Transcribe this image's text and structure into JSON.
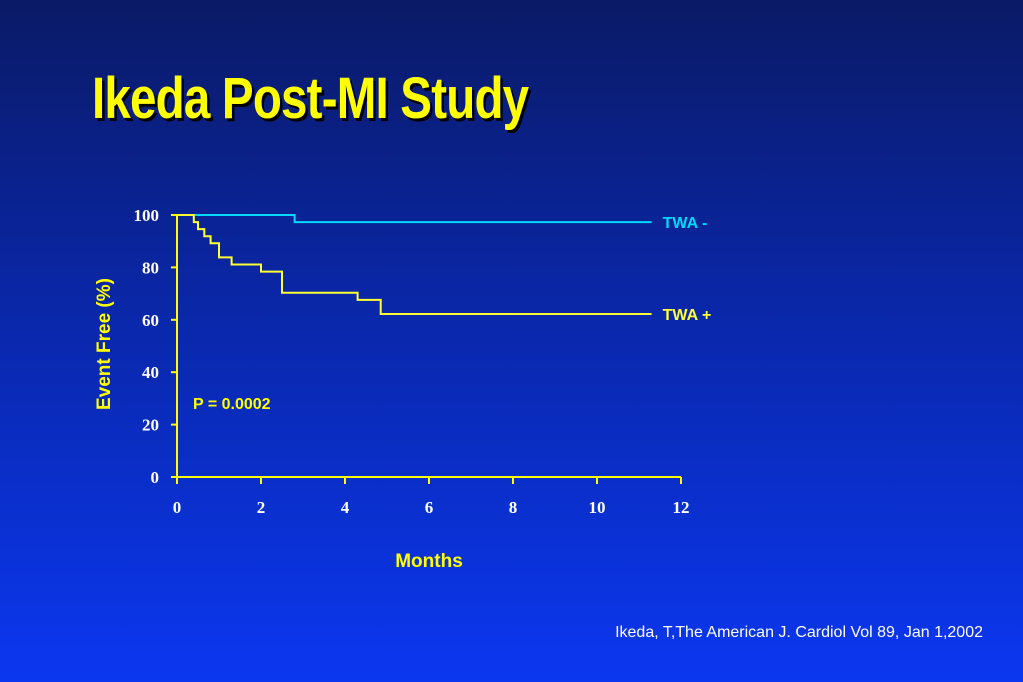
{
  "slide": {
    "title": "Ikeda Post-MI Study",
    "citation": "Ikeda, T,The American J. Cardiol Vol 89, Jan 1,2002"
  },
  "colors": {
    "axis": "#ffff00",
    "tick_labels": "#ffffff",
    "twa_negative": "#00d8ff",
    "twa_positive": "#ffff33"
  },
  "chart_data": {
    "type": "line",
    "step": true,
    "title": "",
    "xlabel": "Months",
    "ylabel": "Event Free (%)",
    "xlim": [
      0,
      12
    ],
    "ylim": [
      0,
      100
    ],
    "xticks": [
      0,
      2,
      4,
      6,
      8,
      10,
      12
    ],
    "yticks": [
      0,
      20,
      40,
      60,
      80,
      100
    ],
    "grid": false,
    "annotation": "P = 0.0002",
    "series": [
      {
        "name": "TWA -",
        "x": [
          0,
          2.8,
          2.8,
          11.3
        ],
        "y": [
          100,
          100,
          97.3,
          97.3
        ]
      },
      {
        "name": "TWA +",
        "x": [
          0,
          0.4,
          0.4,
          0.5,
          0.5,
          0.65,
          0.65,
          0.8,
          0.8,
          1.0,
          1.0,
          1.3,
          1.3,
          2.0,
          2.0,
          2.5,
          2.5,
          4.3,
          4.3,
          4.85,
          4.85,
          11.3
        ],
        "y": [
          100,
          100,
          97.3,
          97.3,
          94.6,
          94.6,
          91.9,
          91.9,
          89.2,
          89.2,
          83.8,
          83.8,
          81.1,
          81.1,
          78.4,
          78.4,
          70.3,
          70.3,
          67.6,
          67.6,
          62.2,
          62.2
        ]
      }
    ]
  }
}
